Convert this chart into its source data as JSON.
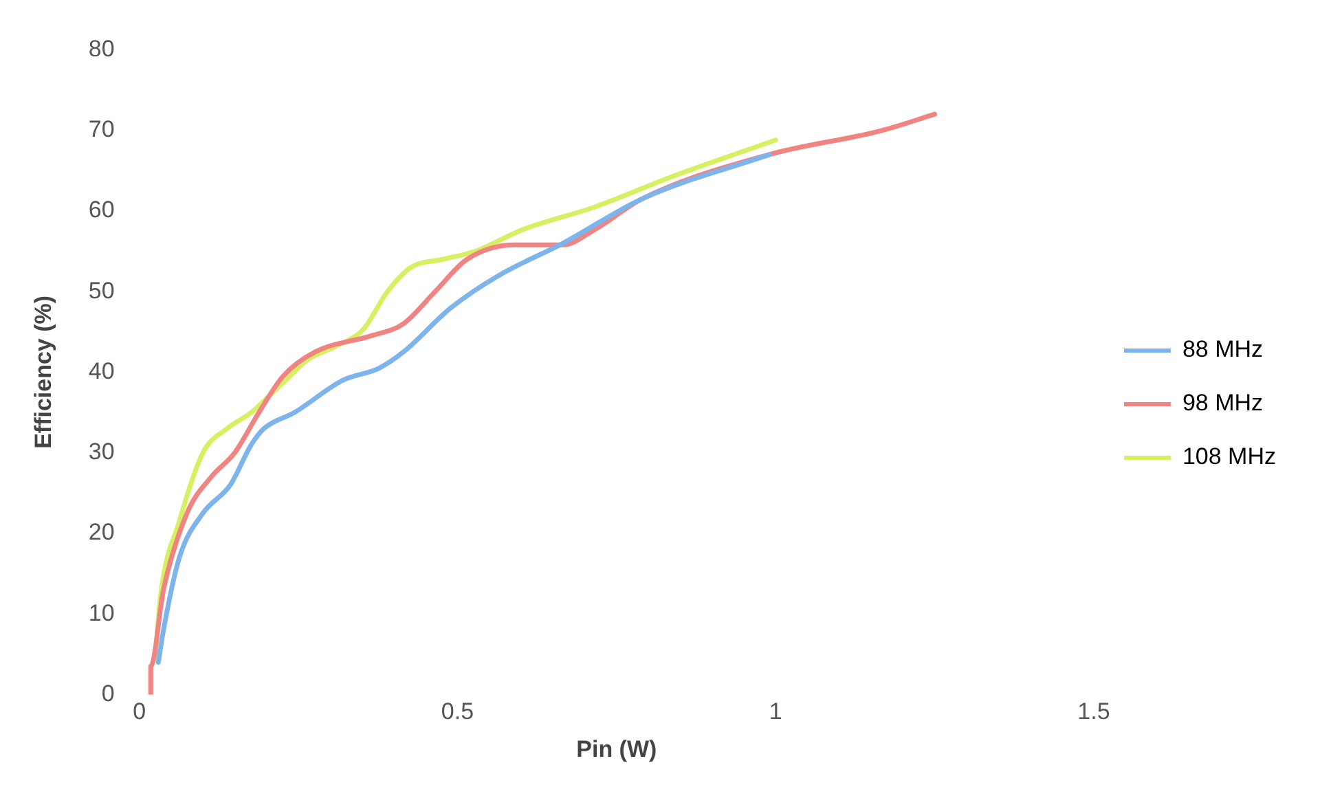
{
  "chart_data": {
    "type": "line",
    "xlabel": "Pin (W)",
    "ylabel": "Efficiency (%)",
    "xlim": [
      0,
      1.5
    ],
    "xticks": [
      0,
      0.5,
      1,
      1.5
    ],
    "ylim": [
      0,
      80
    ],
    "yticks": [
      0,
      10,
      20,
      30,
      40,
      50,
      60,
      70,
      80
    ],
    "grid": false,
    "legend": "right",
    "marker": "none",
    "line_style": "solid",
    "series": [
      {
        "name": "88 MHz",
        "color": "#7db4ec",
        "x": [
          0.03,
          0.038,
          0.063,
          0.1,
          0.143,
          0.176,
          0.196,
          0.244,
          0.32,
          0.377,
          0.415,
          0.49,
          0.565,
          0.666,
          0.79,
          0.99
        ],
        "values": [
          4,
          8,
          17,
          22.5,
          26,
          31,
          33,
          35,
          39,
          40.5,
          42.5,
          48,
          52,
          56,
          61.5,
          67
        ]
      },
      {
        "name": "98 MHz",
        "color": "#f08482",
        "x": [
          0.018,
          0.018,
          0.038,
          0.075,
          0.113,
          0.15,
          0.188,
          0.226,
          0.276,
          0.364,
          0.415,
          0.465,
          0.515,
          0.59,
          0.666,
          0.716,
          0.79,
          0.99,
          1.168,
          1.25
        ],
        "values": [
          0,
          3.5,
          13,
          22.5,
          27,
          30,
          35,
          39.5,
          42.5,
          44.5,
          46,
          50,
          54,
          55.8,
          55.8,
          57.7,
          61.5,
          67,
          70,
          72
        ]
      },
      {
        "name": "108 MHz",
        "color": "#d6f061",
        "x": [
          0.025,
          0.033,
          0.063,
          0.1,
          0.138,
          0.176,
          0.226,
          0.264,
          0.314,
          0.352,
          0.39,
          0.427,
          0.477,
          0.528,
          0.603,
          0.716,
          0.842,
          1.0
        ],
        "values": [
          4.4,
          12,
          21.5,
          30,
          33,
          35,
          38.7,
          41.5,
          43.4,
          45.3,
          50,
          53,
          54,
          55,
          57.7,
          60.5,
          64.4,
          68.8
        ]
      }
    ]
  }
}
